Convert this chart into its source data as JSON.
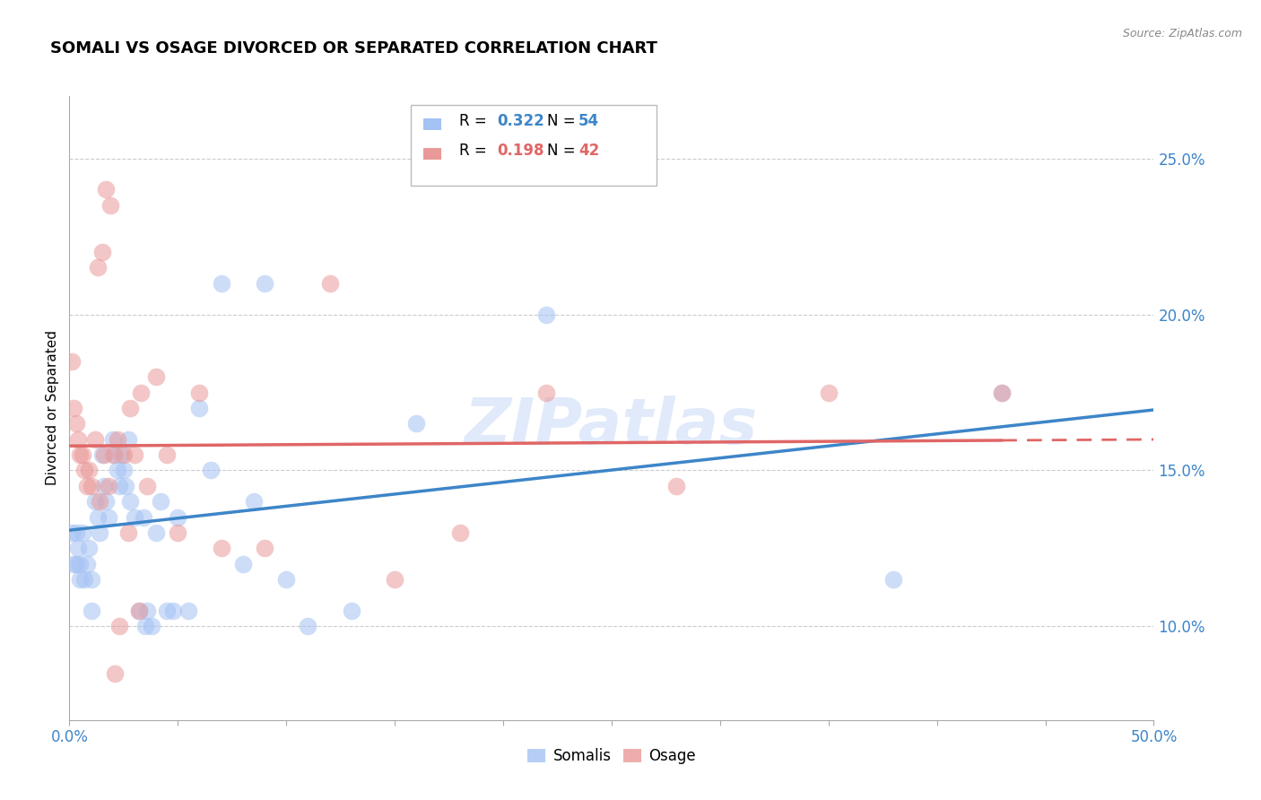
{
  "title": "SOMALI VS OSAGE DIVORCED OR SEPARATED CORRELATION CHART",
  "source": "Source: ZipAtlas.com",
  "ylabel_label": "Divorced or Separated",
  "legend_label1": "Somalis",
  "legend_label2": "Osage",
  "R1": 0.322,
  "N1": 54,
  "R2": 0.198,
  "N2": 42,
  "color_blue": "#a4c2f4",
  "color_pink": "#ea9999",
  "color_line_blue": "#3d85c8",
  "color_line_pink": "#e06666",
  "color_tick_label": "#3d85c8",
  "xlim": [
    0.0,
    0.5
  ],
  "ylim": [
    0.07,
    0.27
  ],
  "xticks": [
    0.0,
    0.05,
    0.1,
    0.15,
    0.2,
    0.25,
    0.3,
    0.35,
    0.4,
    0.45,
    0.5
  ],
  "xtick_labels_shown": {
    "0.0": "0.0%",
    "0.5": "50.0%"
  },
  "yticks": [
    0.1,
    0.15,
    0.2,
    0.25
  ],
  "ytick_labels": [
    "10.0%",
    "15.0%",
    "20.0%",
    "25.0%"
  ],
  "watermark": "ZIPatlas",
  "somali_x": [
    0.001,
    0.002,
    0.003,
    0.003,
    0.004,
    0.005,
    0.005,
    0.006,
    0.007,
    0.008,
    0.009,
    0.01,
    0.01,
    0.012,
    0.013,
    0.014,
    0.015,
    0.016,
    0.017,
    0.018,
    0.02,
    0.021,
    0.022,
    0.023,
    0.024,
    0.025,
    0.026,
    0.027,
    0.028,
    0.03,
    0.032,
    0.034,
    0.035,
    0.036,
    0.038,
    0.04,
    0.042,
    0.045,
    0.048,
    0.05,
    0.055,
    0.06,
    0.065,
    0.07,
    0.08,
    0.085,
    0.09,
    0.1,
    0.11,
    0.13,
    0.16,
    0.22,
    0.38,
    0.43
  ],
  "somali_y": [
    0.13,
    0.12,
    0.13,
    0.12,
    0.125,
    0.115,
    0.12,
    0.13,
    0.115,
    0.12,
    0.125,
    0.115,
    0.105,
    0.14,
    0.135,
    0.13,
    0.155,
    0.145,
    0.14,
    0.135,
    0.16,
    0.155,
    0.15,
    0.145,
    0.155,
    0.15,
    0.145,
    0.16,
    0.14,
    0.135,
    0.105,
    0.135,
    0.1,
    0.105,
    0.1,
    0.13,
    0.14,
    0.105,
    0.105,
    0.135,
    0.105,
    0.17,
    0.15,
    0.21,
    0.12,
    0.14,
    0.21,
    0.115,
    0.1,
    0.105,
    0.165,
    0.2,
    0.115,
    0.175
  ],
  "osage_x": [
    0.001,
    0.002,
    0.003,
    0.004,
    0.005,
    0.006,
    0.007,
    0.008,
    0.009,
    0.01,
    0.012,
    0.014,
    0.016,
    0.018,
    0.02,
    0.022,
    0.025,
    0.028,
    0.03,
    0.033,
    0.036,
    0.04,
    0.045,
    0.05,
    0.06,
    0.07,
    0.09,
    0.12,
    0.15,
    0.18,
    0.22,
    0.28,
    0.35,
    0.43,
    0.013,
    0.015,
    0.017,
    0.019,
    0.021,
    0.023,
    0.027,
    0.032
  ],
  "osage_y": [
    0.185,
    0.17,
    0.165,
    0.16,
    0.155,
    0.155,
    0.15,
    0.145,
    0.15,
    0.145,
    0.16,
    0.14,
    0.155,
    0.145,
    0.155,
    0.16,
    0.155,
    0.17,
    0.155,
    0.175,
    0.145,
    0.18,
    0.155,
    0.13,
    0.175,
    0.125,
    0.125,
    0.21,
    0.115,
    0.13,
    0.175,
    0.145,
    0.175,
    0.175,
    0.215,
    0.22,
    0.24,
    0.235,
    0.085,
    0.1,
    0.13,
    0.105
  ]
}
